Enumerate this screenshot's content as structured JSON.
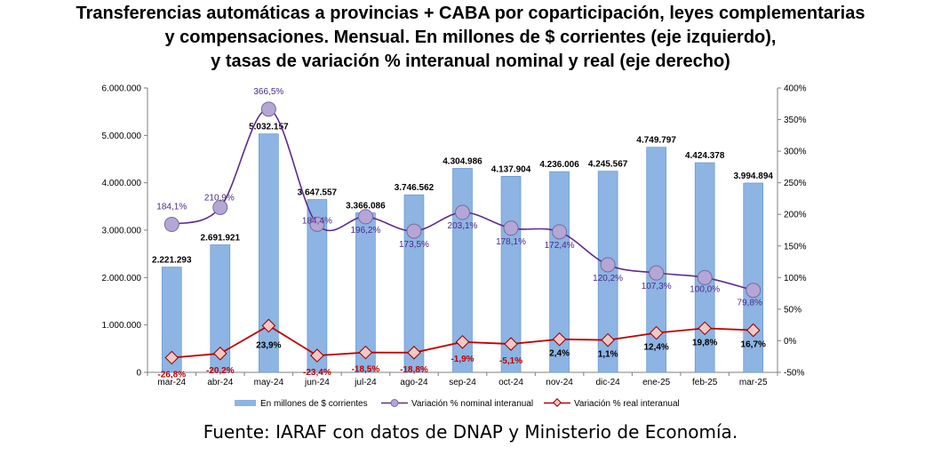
{
  "title_lines": [
    "Transferencias automáticas a provincias + CABA por coparticipación, leyes complementarias",
    "y compensaciones. Mensual. En millones de $ corrientes (eje izquierdo),",
    "y tasas de variación % interanual nominal y real (eje derecho)"
  ],
  "source": "Fuente: IARAF con datos de DNAP y Ministerio de Economía.",
  "colors": {
    "bars": "#8db4e2",
    "bars_border": "#5b8fd0",
    "nominal_line": "#5b2c8e",
    "nominal_marker": "#b4a7d6",
    "real_line": "#c00000",
    "real_marker": "#f4c7c3",
    "real_label_negative": "#c00000",
    "real_label_positive": "#000000"
  },
  "chart_data": {
    "type": "bar",
    "categories": [
      "mar-24",
      "abr-24",
      "may-24",
      "jun-24",
      "jul-24",
      "ago-24",
      "sep-24",
      "oct-24",
      "nov-24",
      "dic-24",
      "ene-25",
      "feb-25",
      "mar-25"
    ],
    "series": [
      {
        "name": "En millones de $ corrientes",
        "type": "bar",
        "axis": "left",
        "values": [
          2221293,
          2691921,
          5032157,
          3647557,
          3366086,
          3746562,
          4304986,
          4137904,
          4236006,
          4245567,
          4749797,
          4424378,
          3994894
        ],
        "labels": [
          "2.221.293",
          "2.691.921",
          "5.032.157",
          "3.647.557",
          "3.366.086",
          "3.746.562",
          "4.304.986",
          "4.137.904",
          "4.236.006",
          "4.245.567",
          "4.749.797",
          "4.424.378",
          "3.994.894"
        ]
      },
      {
        "name": "Variación % nominal interanual",
        "type": "line",
        "axis": "right",
        "values": [
          184.1,
          210.9,
          366.5,
          184.4,
          196.2,
          173.5,
          203.1,
          178.1,
          172.4,
          120.2,
          107.3,
          100.0,
          79.8
        ],
        "labels": [
          "184,1%",
          "210,9%",
          "366,5%",
          "184,4%",
          "196,2%",
          "173,5%",
          "203,1%",
          "178,1%",
          "172,4%",
          "120,2%",
          "107,3%",
          "100,0%",
          "79,8%"
        ]
      },
      {
        "name": "Variación % real interanual",
        "type": "line",
        "axis": "right",
        "values": [
          -26.8,
          -20.2,
          23.9,
          -23.4,
          -18.5,
          -18.8,
          -1.9,
          -5.1,
          2.4,
          1.1,
          12.4,
          19.8,
          16.7
        ],
        "labels": [
          "-26,8%",
          "-20,2%",
          "23,9%",
          "-23,4%",
          "-18,5%",
          "-18,8%",
          "-1,9%",
          "-5,1%",
          "2,4%",
          "1,1%",
          "12,4%",
          "19,8%",
          "16,7%"
        ]
      }
    ],
    "y_left": {
      "min": 0,
      "max": 6000000,
      "ticks": [
        0,
        1000000,
        2000000,
        3000000,
        4000000,
        5000000,
        6000000
      ],
      "tick_labels": [
        "0",
        "1.000.000",
        "2.000.000",
        "3.000.000",
        "4.000.000",
        "5.000.000",
        "6.000.000"
      ]
    },
    "y_right": {
      "min": -50,
      "max": 400,
      "ticks": [
        -50,
        0,
        50,
        100,
        150,
        200,
        250,
        300,
        350,
        400
      ],
      "tick_labels": [
        "-50%",
        "0%",
        "50%",
        "100%",
        "150%",
        "200%",
        "250%",
        "300%",
        "350%",
        "400%"
      ]
    },
    "grid": false,
    "legend_position": "bottom"
  }
}
